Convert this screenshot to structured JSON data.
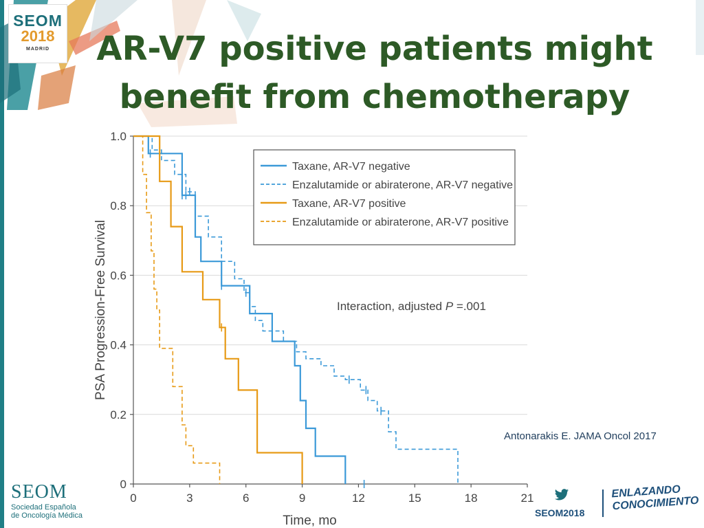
{
  "logo": {
    "name": "SEOM",
    "year": "2018",
    "city": "MADRID"
  },
  "title_line1": "AR-V7 positive patients might",
  "title_line2": "benefit from chemotherapy",
  "citation": "Antonarakis E. JAMA Oncol 2017",
  "footer": {
    "org_name": "SEOM",
    "org_line1": "Sociedad Española",
    "org_line2": "de Oncología Médica",
    "hashtag": "SEOM2018",
    "slogan_line1": "ENLAZANDO",
    "slogan_line2": "CONOCIMIENTO"
  },
  "colors": {
    "blue": "#3b99d8",
    "orange": "#e79a16",
    "title_green": "#2d5a26",
    "teal": "#1d6f7a"
  },
  "chart_data": {
    "type": "line",
    "xlabel": "Time, mo",
    "ylabel": "PSA Progression-Free Survival",
    "xlim": [
      0,
      21
    ],
    "ylim": [
      0,
      1
    ],
    "x_ticks": [
      0,
      3,
      6,
      9,
      12,
      15,
      18,
      21
    ],
    "y_ticks": [
      0,
      0.2,
      0.4,
      0.6,
      0.8,
      1.0
    ],
    "y_tick_labels": [
      "0",
      "0.2",
      "0.4",
      "0.6",
      "0.8",
      "1.0"
    ],
    "grid": true,
    "legend_position": "top-right",
    "annotation_prefix": "Interaction, adjusted ",
    "annotation_p": "P",
    "annotation_suffix": " =.001",
    "series": [
      {
        "name": "Taxane, AR-V7 negative",
        "color": "#3b99d8",
        "dashed": false,
        "points": [
          [
            0,
            1.0
          ],
          [
            0.8,
            1.0
          ],
          [
            0.8,
            0.95
          ],
          [
            2.6,
            0.95
          ],
          [
            2.6,
            0.83
          ],
          [
            3.3,
            0.83
          ],
          [
            3.3,
            0.71
          ],
          [
            3.6,
            0.71
          ],
          [
            3.6,
            0.64
          ],
          [
            4.7,
            0.64
          ],
          [
            4.7,
            0.57
          ],
          [
            6.2,
            0.57
          ],
          [
            6.2,
            0.49
          ],
          [
            7.4,
            0.49
          ],
          [
            7.4,
            0.41
          ],
          [
            8.6,
            0.41
          ],
          [
            8.6,
            0.34
          ],
          [
            8.9,
            0.34
          ],
          [
            8.9,
            0.24
          ],
          [
            9.2,
            0.24
          ],
          [
            9.2,
            0.16
          ],
          [
            9.7,
            0.16
          ],
          [
            9.7,
            0.08
          ],
          [
            11.3,
            0.08
          ],
          [
            11.3,
            0
          ]
        ]
      },
      {
        "name": "Enzalutamide or abiraterone, AR-V7 negative",
        "color": "#3b99d8",
        "dashed": true,
        "points": [
          [
            0,
            1.0
          ],
          [
            1.0,
            1.0
          ],
          [
            1.0,
            0.96
          ],
          [
            1.5,
            0.96
          ],
          [
            1.5,
            0.93
          ],
          [
            2.2,
            0.93
          ],
          [
            2.2,
            0.89
          ],
          [
            2.8,
            0.89
          ],
          [
            2.8,
            0.84
          ],
          [
            3.3,
            0.84
          ],
          [
            3.3,
            0.77
          ],
          [
            4.0,
            0.77
          ],
          [
            4.0,
            0.71
          ],
          [
            4.7,
            0.71
          ],
          [
            4.7,
            0.64
          ],
          [
            5.4,
            0.64
          ],
          [
            5.4,
            0.59
          ],
          [
            5.9,
            0.59
          ],
          [
            5.9,
            0.55
          ],
          [
            6.2,
            0.55
          ],
          [
            6.2,
            0.51
          ],
          [
            6.5,
            0.51
          ],
          [
            6.5,
            0.47
          ],
          [
            6.9,
            0.47
          ],
          [
            6.9,
            0.44
          ],
          [
            8.0,
            0.44
          ],
          [
            8.0,
            0.41
          ],
          [
            8.7,
            0.41
          ],
          [
            8.7,
            0.38
          ],
          [
            9.2,
            0.38
          ],
          [
            9.2,
            0.36
          ],
          [
            10.0,
            0.36
          ],
          [
            10.0,
            0.34
          ],
          [
            10.7,
            0.34
          ],
          [
            10.7,
            0.31
          ],
          [
            11.3,
            0.31
          ],
          [
            11.3,
            0.3
          ],
          [
            12.1,
            0.3
          ],
          [
            12.1,
            0.27
          ],
          [
            12.5,
            0.27
          ],
          [
            12.5,
            0.24
          ],
          [
            13.0,
            0.24
          ],
          [
            13.0,
            0.21
          ],
          [
            13.6,
            0.21
          ],
          [
            13.6,
            0.15
          ],
          [
            14.0,
            0.15
          ],
          [
            14.0,
            0.1
          ],
          [
            17.3,
            0.1
          ],
          [
            17.3,
            0
          ]
        ]
      },
      {
        "name": "Taxane, AR-V7 positive",
        "color": "#e79a16",
        "dashed": false,
        "points": [
          [
            0,
            1.0
          ],
          [
            1.4,
            1.0
          ],
          [
            1.4,
            0.87
          ],
          [
            2.0,
            0.87
          ],
          [
            2.0,
            0.74
          ],
          [
            2.6,
            0.74
          ],
          [
            2.6,
            0.61
          ],
          [
            3.7,
            0.61
          ],
          [
            3.7,
            0.53
          ],
          [
            4.6,
            0.53
          ],
          [
            4.6,
            0.45
          ],
          [
            4.9,
            0.45
          ],
          [
            4.9,
            0.36
          ],
          [
            5.6,
            0.36
          ],
          [
            5.6,
            0.27
          ],
          [
            6.6,
            0.27
          ],
          [
            6.6,
            0.09
          ],
          [
            9.0,
            0.09
          ],
          [
            9.0,
            0
          ]
        ]
      },
      {
        "name": "Enzalutamide or abiraterone, AR-V7 positive",
        "color": "#e79a16",
        "dashed": true,
        "points": [
          [
            0,
            1.0
          ],
          [
            0.5,
            1.0
          ],
          [
            0.5,
            0.89
          ],
          [
            0.7,
            0.89
          ],
          [
            0.7,
            0.78
          ],
          [
            0.95,
            0.78
          ],
          [
            0.95,
            0.67
          ],
          [
            1.1,
            0.67
          ],
          [
            1.1,
            0.56
          ],
          [
            1.25,
            0.56
          ],
          [
            1.25,
            0.5
          ],
          [
            1.4,
            0.5
          ],
          [
            1.4,
            0.39
          ],
          [
            2.1,
            0.39
          ],
          [
            2.1,
            0.28
          ],
          [
            2.6,
            0.28
          ],
          [
            2.6,
            0.17
          ],
          [
            2.8,
            0.17
          ],
          [
            2.8,
            0.11
          ],
          [
            3.2,
            0.11
          ],
          [
            3.2,
            0.06
          ],
          [
            4.6,
            0.06
          ],
          [
            4.6,
            0
          ]
        ]
      }
    ],
    "censor_marks": [
      {
        "series": 0,
        "x": [
          0.9,
          2.6,
          2.8,
          4.7,
          12.3
        ]
      },
      {
        "series": 1,
        "x": [
          3.0,
          6.0,
          11.5,
          12.4,
          13.2
        ]
      },
      {
        "series": 2,
        "x": [
          4.7
        ]
      }
    ]
  }
}
